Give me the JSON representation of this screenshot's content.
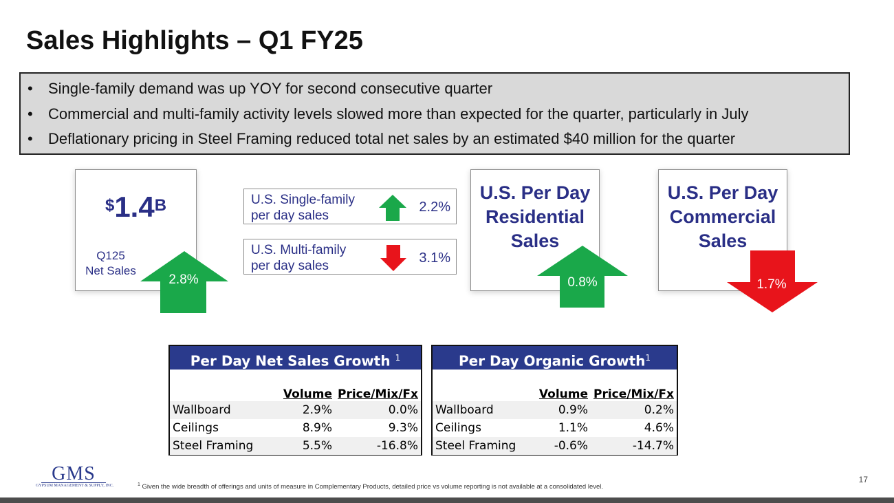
{
  "title": "Sales Highlights – Q1 FY25",
  "bullets": [
    "Single-family demand was up YOY for second consecutive quarter",
    "Commercial and multi-family activity levels slowed more than expected for the quarter, particularly in July",
    "Deflationary pricing in Steel Framing reduced total net sales by an estimated $40 million for the quarter"
  ],
  "bullet_char": "•",
  "net_sales": {
    "currency": "$",
    "value": "1.4",
    "suffix": "B",
    "label_line1": "Q125",
    "label_line2": "Net Sales",
    "change": "2.8%",
    "direction": "up"
  },
  "single_family": {
    "label_line1": "U.S. Single-family",
    "label_line2": "per day sales",
    "value": "2.2%",
    "direction": "up"
  },
  "multi_family": {
    "label_line1": "U.S. Multi-family",
    "label_line2": "per day sales",
    "value": "3.1%",
    "direction": "down"
  },
  "residential": {
    "line1": "U.S. Per Day",
    "line2": "Residential",
    "line3": "Sales",
    "change": "0.8%",
    "direction": "up"
  },
  "commercial": {
    "line1": "U.S. Per Day",
    "line2": "Commercial",
    "line3": "Sales",
    "change": "1.7%",
    "direction": "down"
  },
  "tables": [
    {
      "title": "Per Day Net Sales Growth",
      "footnote_mark": "1",
      "columns": [
        "",
        "Volume",
        "Price/Mix/Fx"
      ],
      "rows": [
        [
          "Wallboard",
          "2.9%",
          "0.0%"
        ],
        [
          "Ceilings",
          "8.9%",
          "9.3%"
        ],
        [
          "Steel Framing",
          "5.5%",
          "-16.8%"
        ]
      ]
    },
    {
      "title": "Per Day Organic Growth",
      "footnote_mark": "1",
      "columns": [
        "",
        "Volume",
        "Price/Mix/Fx"
      ],
      "rows": [
        [
          "Wallboard",
          "0.9%",
          "0.2%"
        ],
        [
          "Ceilings",
          "1.1%",
          "4.6%"
        ],
        [
          "Steel Framing",
          "-0.6%",
          "-14.7%"
        ]
      ]
    }
  ],
  "footnote": {
    "mark": "1",
    "text": "Given the wide breadth of offerings and units of measure in Complementary Products, detailed price vs volume reporting is not available at a consolidated level."
  },
  "page_number": "17",
  "logo": {
    "text": "GMS",
    "subtext": "GYPSUM MANAGEMENT & SUPPLY, INC."
  },
  "colors": {
    "navy": "#2a2f86",
    "up_green": "#1aa84a",
    "down_red": "#e8141b",
    "table_header": "#2a3a8c",
    "bullet_bg": "#d9d9d9"
  }
}
